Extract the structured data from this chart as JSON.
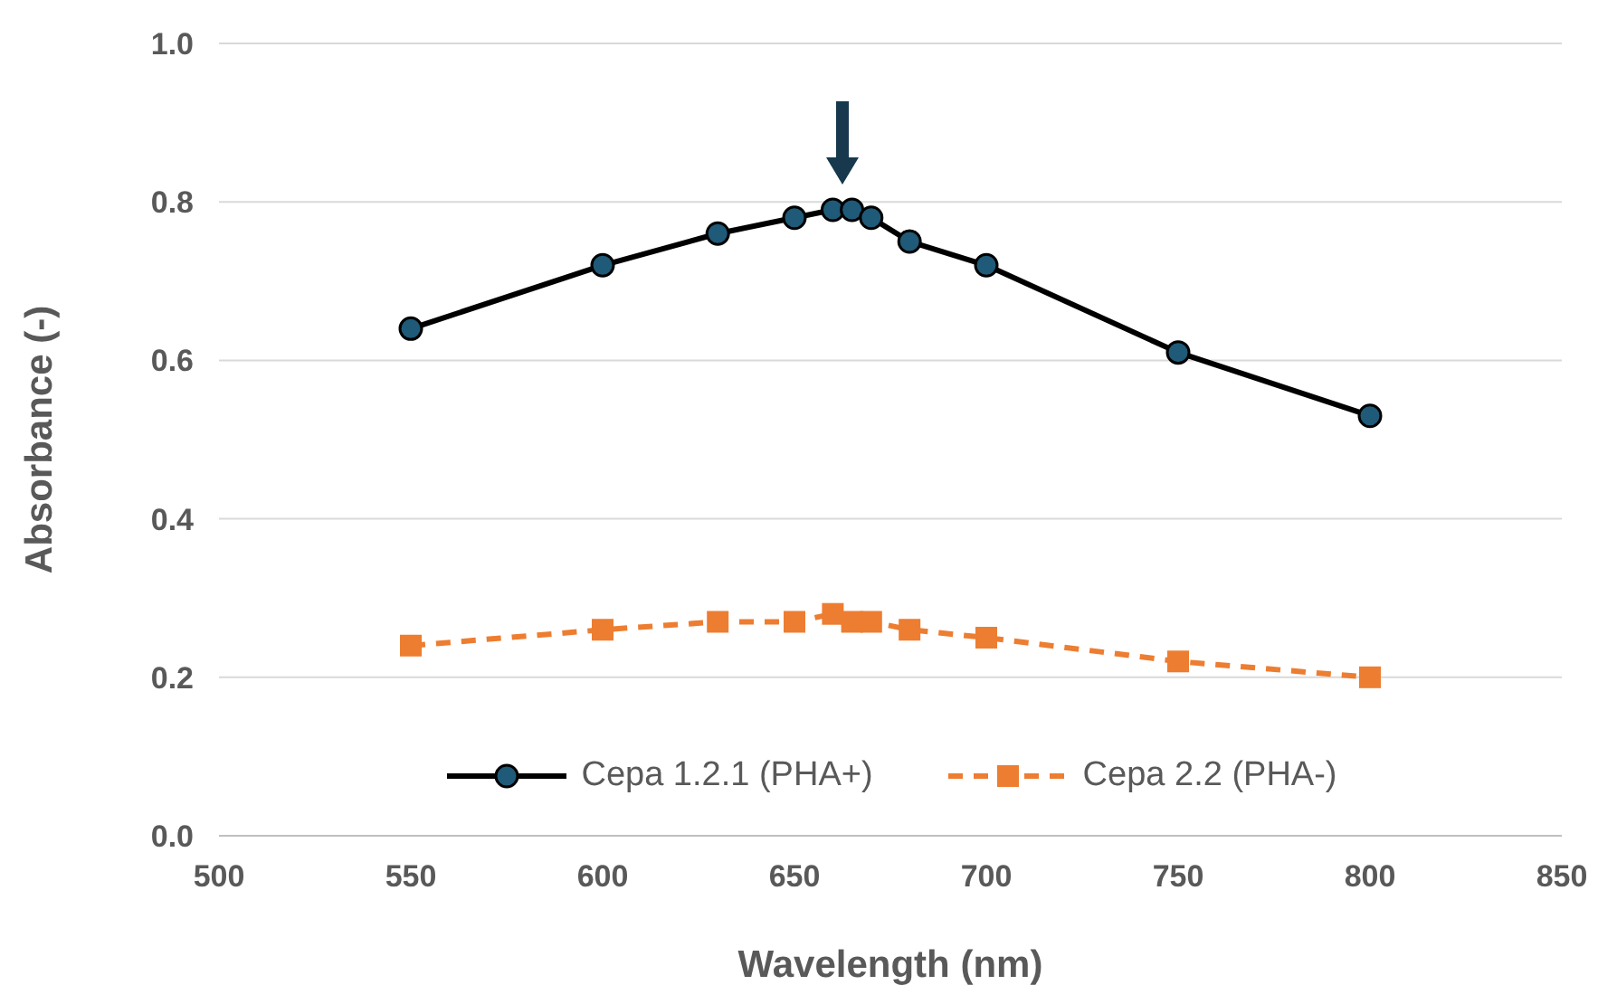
{
  "chart_data": {
    "type": "line",
    "xlabel": "Wavelength (nm)",
    "ylabel": "Absorbance (-)",
    "x": [
      550,
      600,
      630,
      650,
      660,
      665,
      670,
      680,
      700,
      750,
      800
    ],
    "series": [
      {
        "name": "Cepa 1.2.1 (PHA+)",
        "color": "#000000",
        "marker": "circle",
        "line_style": "solid",
        "values": [
          0.64,
          0.72,
          0.76,
          0.78,
          0.79,
          0.79,
          0.78,
          0.75,
          0.72,
          0.61,
          0.53
        ]
      },
      {
        "name": "Cepa 2.2 (PHA-)",
        "color": "#ed7d31",
        "marker": "square",
        "line_style": "dashed",
        "values": [
          0.24,
          0.26,
          0.27,
          0.27,
          0.28,
          0.27,
          0.27,
          0.26,
          0.25,
          0.22,
          0.2
        ]
      }
    ],
    "xlim": [
      500,
      850
    ],
    "xticks": [
      500,
      550,
      600,
      650,
      700,
      750,
      800,
      850
    ],
    "ylim": [
      0,
      1
    ],
    "yticks": [
      {
        "value": 0,
        "label": "0.0"
      },
      {
        "value": 0.2,
        "label": "0.2"
      },
      {
        "value": 0.4,
        "label": "0.4"
      },
      {
        "value": 0.6,
        "label": "0.6"
      },
      {
        "value": 0.8,
        "label": "0.8"
      },
      {
        "value": 1,
        "label": "1.0"
      }
    ],
    "grid": "y",
    "legend": "bottom"
  }
}
